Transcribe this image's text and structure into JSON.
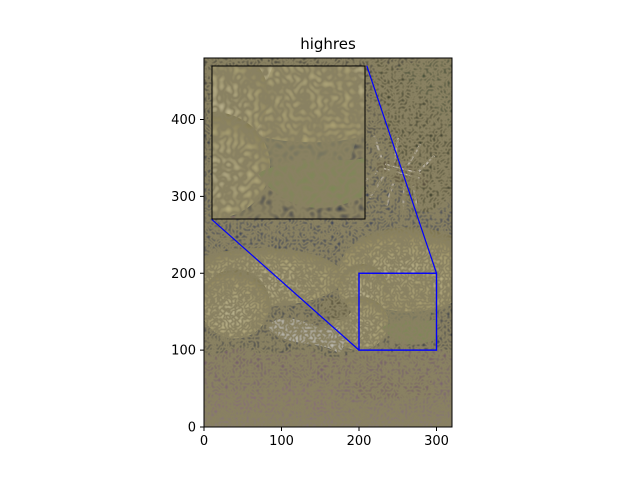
{
  "chart_data": {
    "type": "image",
    "title": "highres",
    "xlabel": "",
    "ylabel": "",
    "xlim": [
      0,
      320
    ],
    "ylim": [
      0,
      480
    ],
    "x_ticks": [
      0,
      100,
      200,
      300
    ],
    "y_ticks": [
      0,
      100,
      200,
      300,
      400
    ],
    "x_tick_labels": [
      "0",
      "100",
      "200",
      "300"
    ],
    "y_tick_labels": [
      "0",
      "100",
      "200",
      "300",
      "400"
    ],
    "zoom_region": {
      "x": [
        200,
        300
      ],
      "y": [
        100,
        200
      ]
    },
    "inset_extent": {
      "x": [
        10,
        210
      ],
      "y": [
        270,
        470
      ]
    },
    "indicator_color": "#0000ff"
  }
}
